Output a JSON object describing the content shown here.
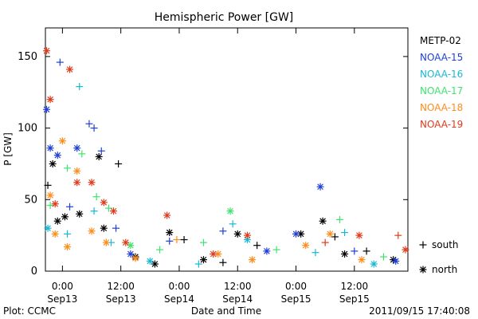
{
  "chart_data": {
    "type": "scatter",
    "title": "Hemispheric Power [GW]",
    "ylabel": "P [GW]",
    "xlabel": "Date and Time",
    "ylim": [
      0,
      170
    ],
    "yticks": [
      0,
      50,
      100,
      150
    ],
    "xlim": [
      "2011-09-12T20:30",
      "2011-09-15T23:00"
    ],
    "xticks": [
      {
        "time": "2011-09-13T00:00",
        "label1": "0:00",
        "label2": "Sep13"
      },
      {
        "time": "2011-09-13T12:00",
        "label1": "12:00",
        "label2": "Sep13"
      },
      {
        "time": "2011-09-14T00:00",
        "label1": "0:00",
        "label2": "Sep14"
      },
      {
        "time": "2011-09-14T12:00",
        "label1": "12:00",
        "label2": "Sep14"
      },
      {
        "time": "2011-09-15T00:00",
        "label1": "0:00",
        "label2": "Sep15"
      },
      {
        "time": "2011-09-15T12:00",
        "label1": "12:00",
        "label2": "Sep15"
      }
    ],
    "legend_position": "right",
    "marker_legend": [
      {
        "marker": "+",
        "label": "south"
      },
      {
        "marker": "*",
        "label": "north"
      }
    ],
    "series": [
      {
        "name": "METP-02",
        "color": "#000000",
        "points": [
          {
            "t": "2011-09-12T21:00",
            "v": 60,
            "m": "+"
          },
          {
            "t": "2011-09-12T22:00",
            "v": 75,
            "m": "*"
          },
          {
            "t": "2011-09-12T23:00",
            "v": 35,
            "m": "*"
          },
          {
            "t": "2011-09-13T00:30",
            "v": 38,
            "m": "*"
          },
          {
            "t": "2011-09-13T03:30",
            "v": 40,
            "m": "*"
          },
          {
            "t": "2011-09-13T07:30",
            "v": 80,
            "m": "*"
          },
          {
            "t": "2011-09-13T08:30",
            "v": 30,
            "m": "*"
          },
          {
            "t": "2011-09-13T11:30",
            "v": 75,
            "m": "+"
          },
          {
            "t": "2011-09-13T15:00",
            "v": 10,
            "m": "*"
          },
          {
            "t": "2011-09-13T19:00",
            "v": 5,
            "m": "*"
          },
          {
            "t": "2011-09-13T22:00",
            "v": 27,
            "m": "*"
          },
          {
            "t": "2011-09-14T01:00",
            "v": 22,
            "m": "+"
          },
          {
            "t": "2011-09-14T05:00",
            "v": 8,
            "m": "*"
          },
          {
            "t": "2011-09-14T09:00",
            "v": 6,
            "m": "+"
          },
          {
            "t": "2011-09-14T12:00",
            "v": 26,
            "m": "*"
          },
          {
            "t": "2011-09-14T16:00",
            "v": 18,
            "m": "+"
          },
          {
            "t": "2011-09-15T01:00",
            "v": 26,
            "m": "*"
          },
          {
            "t": "2011-09-15T05:30",
            "v": 35,
            "m": "*"
          },
          {
            "t": "2011-09-15T08:00",
            "v": 24,
            "m": "+"
          },
          {
            "t": "2011-09-15T10:00",
            "v": 12,
            "m": "*"
          },
          {
            "t": "2011-09-15T14:30",
            "v": 14,
            "m": "+"
          },
          {
            "t": "2011-09-15T20:00",
            "v": 8,
            "m": "*"
          }
        ]
      },
      {
        "name": "NOAA-15",
        "color": "#1f3fd8",
        "points": [
          {
            "t": "2011-09-12T20:45",
            "v": 113,
            "m": "*"
          },
          {
            "t": "2011-09-12T21:30",
            "v": 86,
            "m": "*"
          },
          {
            "t": "2011-09-12T23:00",
            "v": 81,
            "m": "*"
          },
          {
            "t": "2011-09-12T23:30",
            "v": 146,
            "m": "+"
          },
          {
            "t": "2011-09-13T01:30",
            "v": 45,
            "m": "+"
          },
          {
            "t": "2011-09-13T03:00",
            "v": 86,
            "m": "*"
          },
          {
            "t": "2011-09-13T05:30",
            "v": 103,
            "m": "+"
          },
          {
            "t": "2011-09-13T06:30",
            "v": 100,
            "m": "+"
          },
          {
            "t": "2011-09-13T08:00",
            "v": 84,
            "m": "+"
          },
          {
            "t": "2011-09-13T11:00",
            "v": 30,
            "m": "+"
          },
          {
            "t": "2011-09-13T14:00",
            "v": 12,
            "m": "*"
          },
          {
            "t": "2011-09-13T22:00",
            "v": 21,
            "m": "+"
          },
          {
            "t": "2011-09-14T09:00",
            "v": 28,
            "m": "+"
          },
          {
            "t": "2011-09-14T18:00",
            "v": 14,
            "m": "*"
          },
          {
            "t": "2011-09-15T00:00",
            "v": 26,
            "m": "*"
          },
          {
            "t": "2011-09-15T05:00",
            "v": 59,
            "m": "*"
          },
          {
            "t": "2011-09-15T12:00",
            "v": 14,
            "m": "+"
          },
          {
            "t": "2011-09-15T20:30",
            "v": 7,
            "m": "*"
          }
        ]
      },
      {
        "name": "NOAA-16",
        "color": "#17b8d8",
        "points": [
          {
            "t": "2011-09-12T21:00",
            "v": 30,
            "m": "*"
          },
          {
            "t": "2011-09-13T01:00",
            "v": 26,
            "m": "+"
          },
          {
            "t": "2011-09-13T03:30",
            "v": 129,
            "m": "+"
          },
          {
            "t": "2011-09-13T06:30",
            "v": 42,
            "m": "+"
          },
          {
            "t": "2011-09-13T10:00",
            "v": 20,
            "m": "+"
          },
          {
            "t": "2011-09-13T18:00",
            "v": 7,
            "m": "*"
          },
          {
            "t": "2011-09-14T04:00",
            "v": 5,
            "m": "+"
          },
          {
            "t": "2011-09-14T11:00",
            "v": 33,
            "m": "+"
          },
          {
            "t": "2011-09-14T14:00",
            "v": 22,
            "m": "*"
          },
          {
            "t": "2011-09-15T04:00",
            "v": 13,
            "m": "+"
          },
          {
            "t": "2011-09-15T10:00",
            "v": 27,
            "m": "+"
          },
          {
            "t": "2011-09-15T16:00",
            "v": 5,
            "m": "*"
          }
        ]
      },
      {
        "name": "NOAA-17",
        "color": "#3fe36f",
        "points": [
          {
            "t": "2011-09-12T21:30",
            "v": 46,
            "m": "+"
          },
          {
            "t": "2011-09-13T01:00",
            "v": 72,
            "m": "+"
          },
          {
            "t": "2011-09-13T04:00",
            "v": 82,
            "m": "+"
          },
          {
            "t": "2011-09-13T07:00",
            "v": 52,
            "m": "+"
          },
          {
            "t": "2011-09-13T09:30",
            "v": 44,
            "m": "+"
          },
          {
            "t": "2011-09-13T14:00",
            "v": 18,
            "m": "*"
          },
          {
            "t": "2011-09-13T20:00",
            "v": 15,
            "m": "+"
          },
          {
            "t": "2011-09-14T05:00",
            "v": 20,
            "m": "+"
          },
          {
            "t": "2011-09-14T10:30",
            "v": 42,
            "m": "*"
          },
          {
            "t": "2011-09-14T20:00",
            "v": 15,
            "m": "+"
          },
          {
            "t": "2011-09-15T09:00",
            "v": 36,
            "m": "+"
          },
          {
            "t": "2011-09-15T18:00",
            "v": 10,
            "m": "+"
          }
        ]
      },
      {
        "name": "NOAA-18",
        "color": "#ff8c1a",
        "points": [
          {
            "t": "2011-09-12T21:30",
            "v": 53,
            "m": "*"
          },
          {
            "t": "2011-09-12T22:30",
            "v": 26,
            "m": "*"
          },
          {
            "t": "2011-09-13T00:00",
            "v": 91,
            "m": "*"
          },
          {
            "t": "2011-09-13T01:00",
            "v": 17,
            "m": "*"
          },
          {
            "t": "2011-09-13T03:00",
            "v": 70,
            "m": "*"
          },
          {
            "t": "2011-09-13T06:00",
            "v": 28,
            "m": "*"
          },
          {
            "t": "2011-09-13T09:00",
            "v": 20,
            "m": "*"
          },
          {
            "t": "2011-09-13T15:00",
            "v": 9,
            "m": "*"
          },
          {
            "t": "2011-09-13T23:30",
            "v": 22,
            "m": "+"
          },
          {
            "t": "2011-09-14T08:00",
            "v": 12,
            "m": "*"
          },
          {
            "t": "2011-09-14T15:00",
            "v": 8,
            "m": "*"
          },
          {
            "t": "2011-09-15T02:00",
            "v": 18,
            "m": "*"
          },
          {
            "t": "2011-09-15T07:00",
            "v": 26,
            "m": "*"
          },
          {
            "t": "2011-09-15T13:30",
            "v": 8,
            "m": "*"
          }
        ]
      },
      {
        "name": "NOAA-19",
        "color": "#e03a1c",
        "points": [
          {
            "t": "2011-09-12T20:45",
            "v": 154,
            "m": "*"
          },
          {
            "t": "2011-09-12T21:30",
            "v": 120,
            "m": "*"
          },
          {
            "t": "2011-09-12T22:30",
            "v": 47,
            "m": "*"
          },
          {
            "t": "2011-09-13T01:30",
            "v": 141,
            "m": "*"
          },
          {
            "t": "2011-09-13T03:00",
            "v": 62,
            "m": "*"
          },
          {
            "t": "2011-09-13T06:00",
            "v": 62,
            "m": "*"
          },
          {
            "t": "2011-09-13T08:30",
            "v": 48,
            "m": "*"
          },
          {
            "t": "2011-09-13T10:30",
            "v": 42,
            "m": "*"
          },
          {
            "t": "2011-09-13T13:00",
            "v": 20,
            "m": "*"
          },
          {
            "t": "2011-09-13T21:30",
            "v": 39,
            "m": "*"
          },
          {
            "t": "2011-09-14T07:00",
            "v": 12,
            "m": "*"
          },
          {
            "t": "2011-09-14T14:00",
            "v": 25,
            "m": "*"
          },
          {
            "t": "2011-09-15T06:00",
            "v": 20,
            "m": "+"
          },
          {
            "t": "2011-09-15T13:00",
            "v": 25,
            "m": "*"
          },
          {
            "t": "2011-09-15T21:00",
            "v": 25,
            "m": "+"
          },
          {
            "t": "2011-09-15T22:30",
            "v": 15,
            "m": "*"
          }
        ]
      }
    ]
  },
  "footer": {
    "left": "Plot: CCMC",
    "right": "2011/09/15 17:40:08"
  }
}
